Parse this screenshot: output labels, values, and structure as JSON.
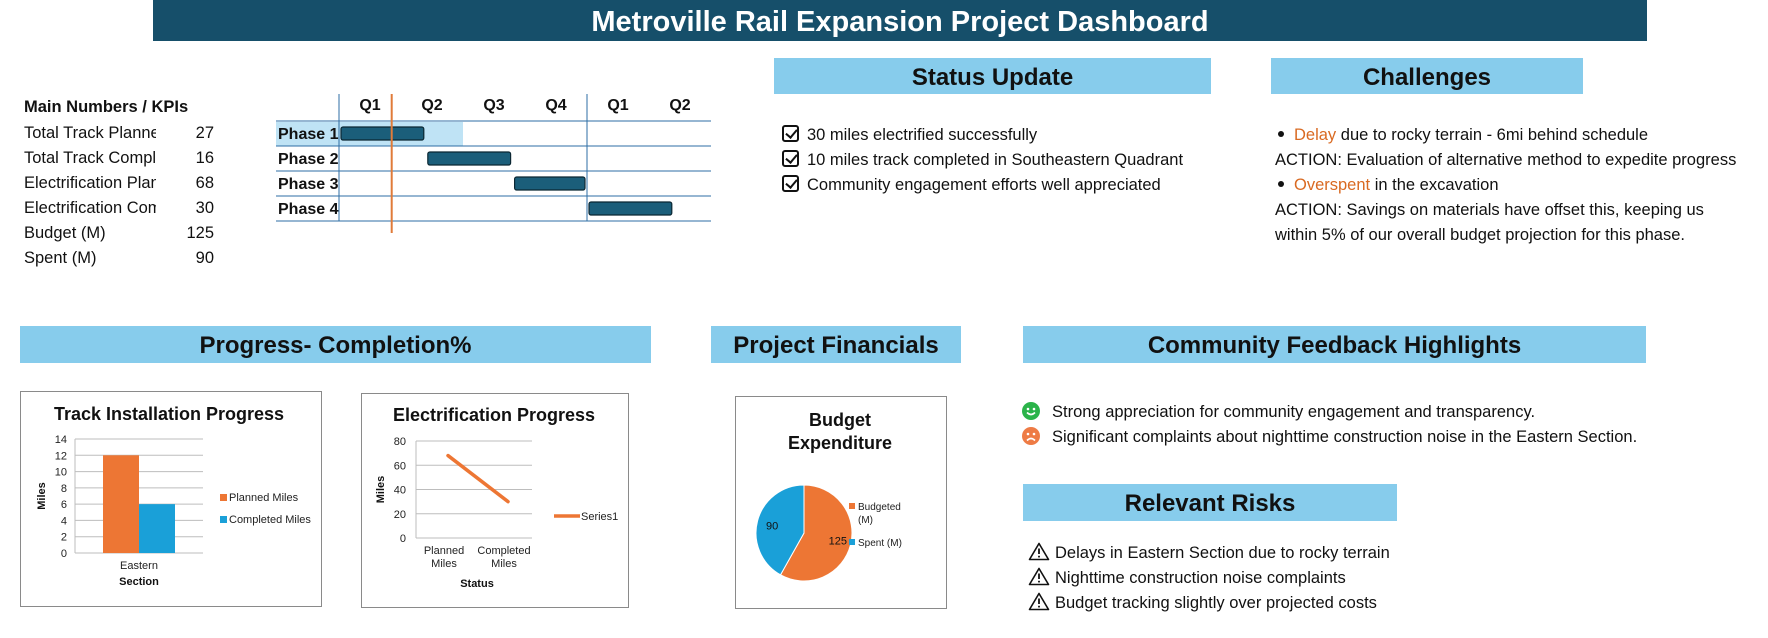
{
  "title": "Metroville Rail Expansion Project Dashboard",
  "kpis": {
    "header": "Main Numbers / KPIs",
    "rows": [
      {
        "label": "Total Track Planned",
        "value": "27"
      },
      {
        "label": "Total Track Completed",
        "value": "16"
      },
      {
        "label": "Electrification Planned",
        "value": "68"
      },
      {
        "label": "Electrification Completed",
        "value": "30"
      },
      {
        "label": "Budget (M)",
        "value": "125"
      },
      {
        "label": "Spent (M)",
        "value": "90"
      }
    ]
  },
  "gantt": {
    "quarters": [
      "Q1",
      "Q2",
      "Q3",
      "Q4",
      "Q1",
      "Q2"
    ],
    "phases": [
      {
        "label": "Phase 1",
        "start": 0,
        "end": 1.4,
        "shade_end": 2
      },
      {
        "label": "Phase 2",
        "start": 1.4,
        "end": 2.8
      },
      {
        "label": "Phase 3",
        "start": 2.8,
        "end": 4
      },
      {
        "label": "Phase 4",
        "start": 4,
        "end": 5.4
      }
    ],
    "today": 0.85,
    "colors": {
      "bar": "#1b5e7a",
      "shade": "#bfe3f5",
      "today": "#e07b39",
      "grid": "#2e6da4"
    }
  },
  "status": {
    "title": "Status Update",
    "items": [
      "30 miles electrified successfully",
      "10 miles track completed in Southeastern Quadrant",
      "Community engagement efforts well appreciated"
    ]
  },
  "challenges": {
    "title": "Challenges",
    "b1_key": "Delay",
    "b1_rest": " due to rocky terrain - 6mi behind schedule",
    "a1": "ACTION: Evaluation of alternative method to expedite progress",
    "b2_key": "Overspent",
    "b2_rest": " in the excavation",
    "a2_line1": "ACTION: Savings on materials have offset this, keeping us",
    "a2_line2": "within 5% of our overall budget projection for this phase."
  },
  "progress": {
    "title": "Progress- Completion%"
  },
  "financials": {
    "title": "Project Financials"
  },
  "feedback": {
    "title": "Community Feedback Highlights",
    "positive": "Strong appreciation for community engagement and transparency.",
    "negative": "Significant complaints about nighttime construction noise in the Eastern Section."
  },
  "risks": {
    "title": "Relevant Risks",
    "items": [
      "Delays in Eastern Section due to rocky terrain",
      "Nighttime construction noise complaints",
      "Budget tracking slightly over projected costs"
    ]
  },
  "chart_data": [
    {
      "type": "bar",
      "title": "Track Installation Progress",
      "categories": [
        "Eastern"
      ],
      "series": [
        {
          "name": "Planned Miles",
          "values": [
            12
          ],
          "color": "#ed7634"
        },
        {
          "name": "Completed Miles",
          "values": [
            6
          ],
          "color": "#1aa0d8"
        }
      ],
      "xlabel": "Section",
      "ylabel": "Miles",
      "ylim": [
        0,
        14
      ],
      "yticks": [
        "0",
        "2",
        "4",
        "6",
        "8",
        "10",
        "12",
        "14"
      ],
      "legend": "right",
      "grid": true
    },
    {
      "type": "line",
      "title": "Electrification Progress",
      "categories": [
        "Planned Miles",
        "Completed Miles"
      ],
      "series": [
        {
          "name": "Series1",
          "values": [
            68,
            30
          ],
          "color": "#ed7634"
        }
      ],
      "xlabel": "Status",
      "ylabel": "Miles",
      "ylim": [
        0,
        80
      ],
      "yticks": [
        "0",
        "20",
        "40",
        "60",
        "80"
      ],
      "legend": "right",
      "grid": true
    },
    {
      "type": "pie",
      "title_line1": "Budget",
      "title_line2": "Expenditure",
      "slices": [
        {
          "name": "Budgeted (M)",
          "value": 125,
          "color": "#ed7634",
          "label": "125"
        },
        {
          "name": "Spent (M)",
          "value": 90,
          "color": "#1aa0d8",
          "label": "90"
        }
      ],
      "legend": "right"
    }
  ]
}
